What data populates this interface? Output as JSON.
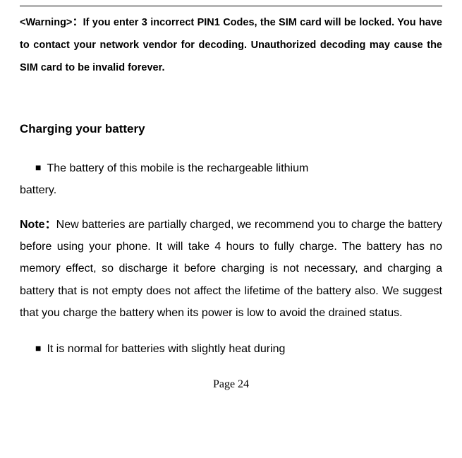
{
  "warning": {
    "text": "<Warning>：If you enter 3 incorrect PIN1 Codes, the SIM card will be locked. You have to contact your network vendor for decoding. Unauthorized decoding may cause the SIM card to be invalid forever."
  },
  "section": {
    "heading": "Charging your battery",
    "bullet1_line": "The battery of this mobile is the rechargeable lithium",
    "bullet1_cont": "battery.",
    "note_label": "Note：",
    "note_body": "New batteries are partially charged, we recommend you to charge the battery before using your phone. It will take 4 hours to fully charge. The battery has no memory effect, so discharge it before charging is not necessary, and charging a battery that is not empty does not affect the lifetime of the battery also. We suggest that you charge the battery when its power is low to avoid the drained status.",
    "bullet2_line": "It is normal for batteries with slightly heat during"
  },
  "page_number": "Page 24"
}
